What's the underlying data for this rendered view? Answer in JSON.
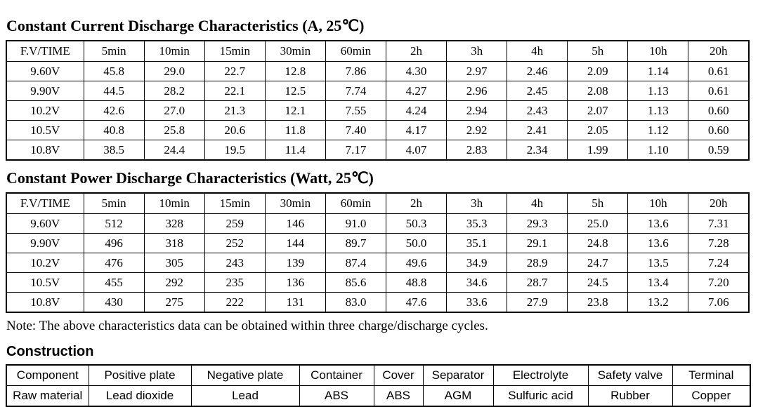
{
  "current_table": {
    "title": "Constant Current Discharge Characteristics (A, 25℃)",
    "columns": [
      "F.V/TIME",
      "5min",
      "10min",
      "15min",
      "30min",
      "60min",
      "2h",
      "3h",
      "4h",
      "5h",
      "10h",
      "20h"
    ],
    "rows": [
      [
        "9.60V",
        "45.8",
        "29.0",
        "22.7",
        "12.8",
        "7.86",
        "4.30",
        "2.97",
        "2.46",
        "2.09",
        "1.14",
        "0.61"
      ],
      [
        "9.90V",
        "44.5",
        "28.2",
        "22.1",
        "12.5",
        "7.74",
        "4.27",
        "2.96",
        "2.45",
        "2.08",
        "1.13",
        "0.61"
      ],
      [
        "10.2V",
        "42.6",
        "27.0",
        "21.3",
        "12.1",
        "7.55",
        "4.24",
        "2.94",
        "2.43",
        "2.07",
        "1.13",
        "0.60"
      ],
      [
        "10.5V",
        "40.8",
        "25.8",
        "20.6",
        "11.8",
        "7.40",
        "4.17",
        "2.92",
        "2.41",
        "2.05",
        "1.12",
        "0.60"
      ],
      [
        "10.8V",
        "38.5",
        "24.4",
        "19.5",
        "11.4",
        "7.17",
        "4.07",
        "2.83",
        "2.34",
        "1.99",
        "1.10",
        "0.59"
      ]
    ]
  },
  "power_table": {
    "title": "Constant Power Discharge Characteristics (Watt, 25℃)",
    "columns": [
      "F.V/TIME",
      "5min",
      "10min",
      "15min",
      "30min",
      "60min",
      "2h",
      "3h",
      "4h",
      "5h",
      "10h",
      "20h"
    ],
    "rows": [
      [
        "9.60V",
        "512",
        "328",
        "259",
        "146",
        "91.0",
        "50.3",
        "35.3",
        "29.3",
        "25.0",
        "13.6",
        "7.31"
      ],
      [
        "9.90V",
        "496",
        "318",
        "252",
        "144",
        "89.7",
        "50.0",
        "35.1",
        "29.1",
        "24.8",
        "13.6",
        "7.28"
      ],
      [
        "10.2V",
        "476",
        "305",
        "243",
        "139",
        "87.4",
        "49.6",
        "34.9",
        "28.9",
        "24.7",
        "13.5",
        "7.24"
      ],
      [
        "10.5V",
        "455",
        "292",
        "235",
        "136",
        "85.6",
        "48.8",
        "34.6",
        "28.7",
        "24.5",
        "13.4",
        "7.20"
      ],
      [
        "10.8V",
        "430",
        "275",
        "222",
        "131",
        "83.0",
        "47.6",
        "33.6",
        "27.9",
        "23.8",
        "13.2",
        "7.06"
      ]
    ]
  },
  "note": "Note: The above characteristics data can be obtained within three charge/discharge cycles.",
  "construction": {
    "title": "Construction",
    "rows": [
      [
        "Component",
        "Positive plate",
        "Negative plate",
        "Container",
        "Cover",
        "Separator",
        "Electrolyte",
        "Safety valve",
        "Terminal"
      ],
      [
        "Raw material",
        "Lead dioxide",
        "Lead",
        "ABS",
        "ABS",
        "AGM",
        "Sulfuric acid",
        "Rubber",
        "Copper"
      ]
    ]
  }
}
